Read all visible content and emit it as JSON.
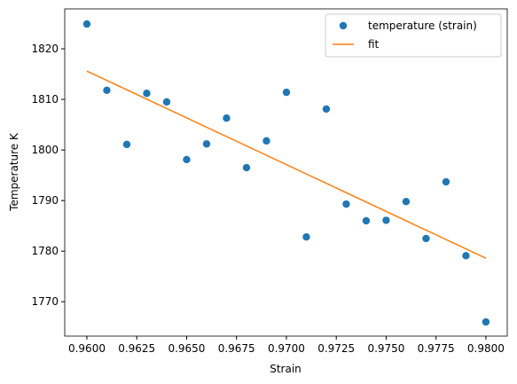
{
  "chart_data": {
    "type": "scatter",
    "xlabel": "Strain",
    "ylabel": "Temperature K",
    "xlim": [
      0.95889,
      0.98107
    ],
    "ylim": [
      1763.2,
      1827.9
    ],
    "xticks": [
      {
        "value": 0.96,
        "label": "0.9600"
      },
      {
        "value": 0.9625,
        "label": "0.9625"
      },
      {
        "value": 0.965,
        "label": "0.9650"
      },
      {
        "value": 0.9675,
        "label": "0.9675"
      },
      {
        "value": 0.97,
        "label": "0.9700"
      },
      {
        "value": 0.9725,
        "label": "0.9725"
      },
      {
        "value": 0.975,
        "label": "0.9750"
      },
      {
        "value": 0.9775,
        "label": "0.9775"
      },
      {
        "value": 0.98,
        "label": "0.9800"
      }
    ],
    "yticks": [
      1770,
      1780,
      1790,
      1800,
      1810,
      1820
    ],
    "legend": "upper right",
    "series": [
      {
        "name": "temperature (strain)",
        "type": "scatter",
        "color": "#1f77b4",
        "x": [
          0.96,
          0.961,
          0.962,
          0.963,
          0.964,
          0.965,
          0.966,
          0.967,
          0.968,
          0.969,
          0.97,
          0.971,
          0.972,
          0.973,
          0.974,
          0.975,
          0.976,
          0.977,
          0.978,
          0.979,
          0.98
        ],
        "values": [
          1824.9,
          1811.8,
          1801.1,
          1811.2,
          1809.5,
          1798.1,
          1801.2,
          1806.3,
          1796.5,
          1801.8,
          1811.4,
          1782.8,
          1808.1,
          1789.3,
          1786.0,
          1786.1,
          1789.8,
          1782.5,
          1793.7,
          1779.1,
          1766.0
        ]
      },
      {
        "name": "fit",
        "type": "line",
        "color": "#ff7f0e",
        "x": [
          0.96,
          0.98
        ],
        "values": [
          1815.6,
          1778.6
        ]
      }
    ]
  }
}
